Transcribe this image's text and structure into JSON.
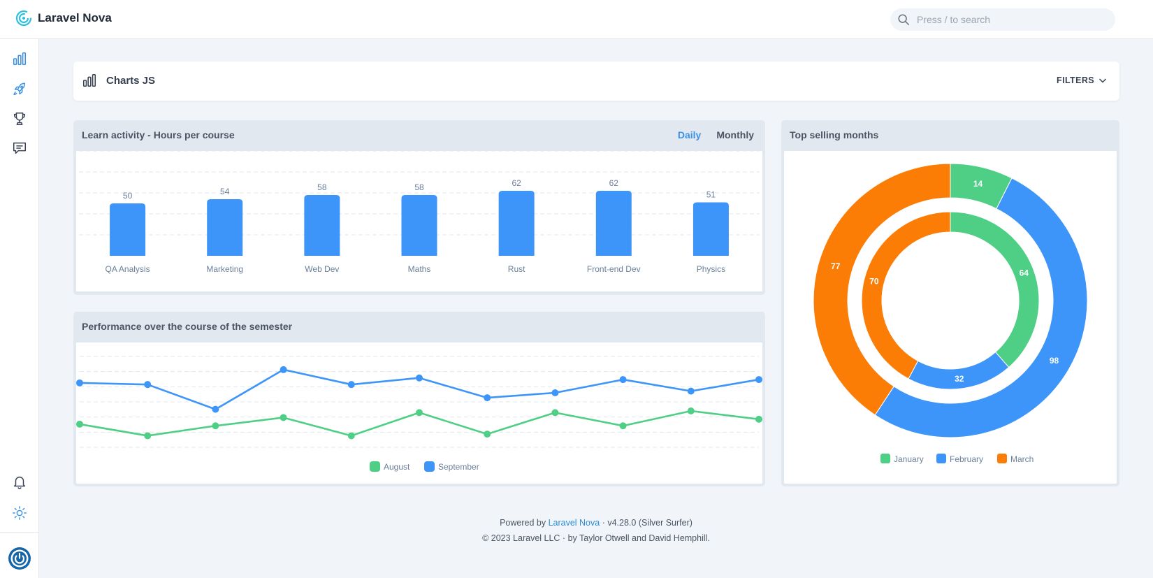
{
  "app": {
    "name": "Laravel Nova"
  },
  "search": {
    "placeholder": "Press / to search"
  },
  "sidebar": {
    "top_items": [
      {
        "icon": "bar-chart-icon"
      },
      {
        "icon": "rocket-icon"
      },
      {
        "icon": "trophy-icon"
      },
      {
        "icon": "chat-icon"
      }
    ],
    "bottom_items": [
      {
        "icon": "bell-icon"
      },
      {
        "icon": "sun-icon"
      },
      {
        "icon": "power-icon"
      }
    ]
  },
  "dashboard": {
    "title": "Charts JS",
    "filters_label": "FILTERS"
  },
  "panels": {
    "learn": {
      "title": "Learn activity - Hours per course",
      "tab_daily": "Daily",
      "tab_monthly": "Monthly"
    },
    "performance": {
      "title": "Performance over the course of the semester"
    },
    "top": {
      "title": "Top selling months"
    }
  },
  "colors": {
    "blue": "#3d95fa",
    "green": "#4fcf85",
    "orange": "#fb7d05",
    "accent": "#3b91e6"
  },
  "chart_data": [
    {
      "type": "bar",
      "categories": [
        "QA Analysis",
        "Marketing",
        "Web Dev",
        "Maths",
        "Rust",
        "Front-end Dev",
        "Physics"
      ],
      "values": [
        50,
        54,
        58,
        58,
        62,
        62,
        51
      ],
      "ylim": [
        0,
        100
      ],
      "grid": true
    },
    {
      "type": "line",
      "x": [
        1,
        2,
        3,
        4,
        5,
        6,
        7,
        8,
        9,
        10,
        11
      ],
      "series": [
        {
          "name": "August",
          "color": "#4fcf85",
          "values": [
            34,
            27,
            33,
            38,
            27,
            41,
            28,
            41,
            33,
            42,
            37
          ]
        },
        {
          "name": "September",
          "color": "#3d95fa",
          "values": [
            59,
            58,
            43,
            67,
            58,
            62,
            50,
            53,
            61,
            54,
            61
          ]
        }
      ],
      "ylim": [
        20,
        75
      ],
      "grid": true,
      "legend": "bottom"
    },
    {
      "type": "pie",
      "labels": [
        "January",
        "February",
        "March"
      ],
      "colors": [
        "#4fcf85",
        "#3d95fa",
        "#fb7d05"
      ],
      "rings": [
        {
          "values": [
            14,
            98,
            77
          ]
        },
        {
          "values": [
            64,
            32,
            70
          ]
        }
      ],
      "legend": "bottom"
    }
  ],
  "footer": {
    "powered_prefix": "Powered by",
    "powered_link": "Laravel Nova",
    "version": "· v4.28.0 (Silver Surfer)",
    "copyright": "© 2023 Laravel LLC · by Taylor Otwell and David Hemphill."
  }
}
